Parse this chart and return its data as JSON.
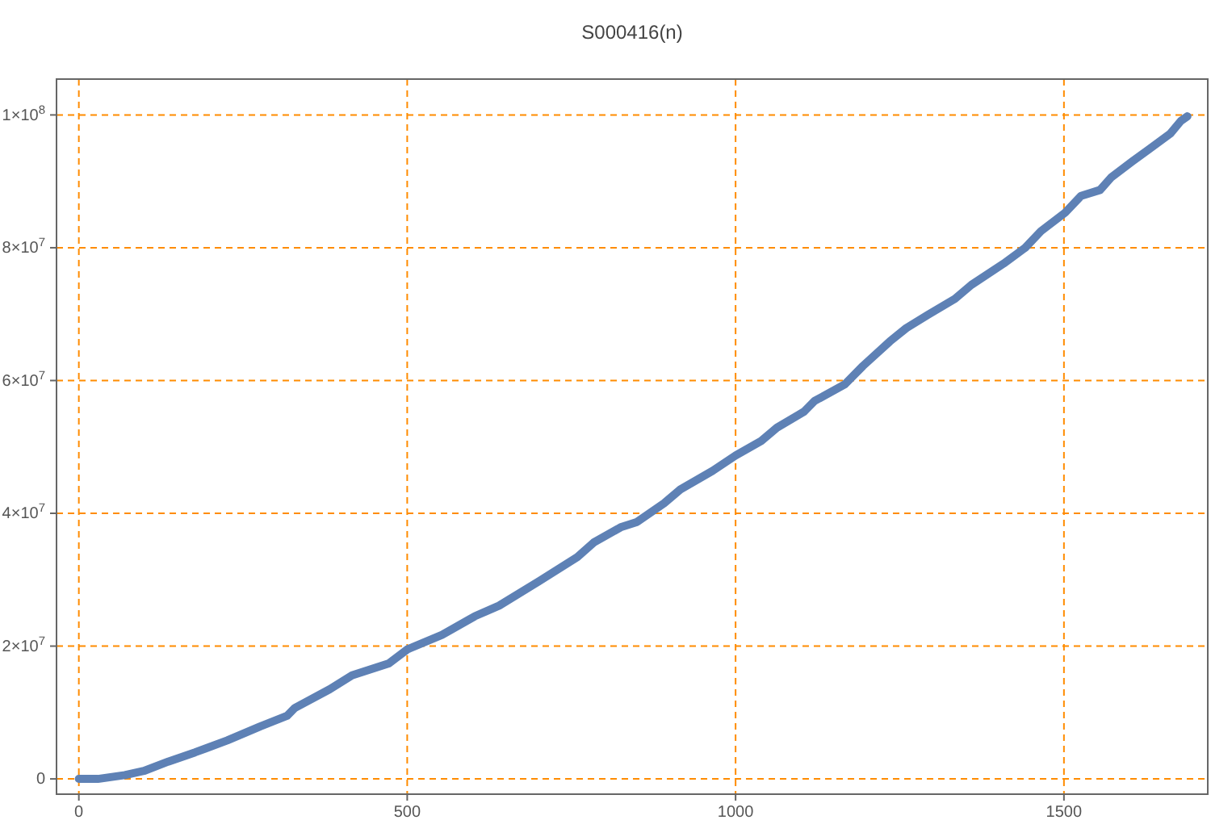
{
  "chart_data": {
    "type": "line",
    "title": "S000416(n)",
    "marker": "none",
    "line_style": "solid",
    "grid": true,
    "x": [
      0,
      29,
      70,
      99,
      136,
      177,
      226,
      276,
      317,
      329,
      382,
      416,
      472,
      500,
      553,
      603,
      640,
      701,
      759,
      784,
      825,
      850,
      891,
      916,
      965,
      1000,
      1039,
      1063,
      1104,
      1120,
      1166,
      1194,
      1235,
      1260,
      1293,
      1334,
      1359,
      1408,
      1441,
      1465,
      1502,
      1526,
      1555,
      1572,
      1604,
      1629,
      1662,
      1678,
      1688
    ],
    "series": [
      {
        "color": "#5e81b5",
        "values": [
          0,
          0,
          570000,
          1200000,
          2600000,
          4000000,
          5800000,
          7900000,
          9500000,
          10700000,
          13500000,
          15600000,
          17400000,
          19500000,
          21700000,
          24500000,
          26100000,
          29800000,
          33400000,
          35600000,
          37900000,
          38700000,
          41500000,
          43600000,
          46400000,
          48700000,
          50900000,
          52900000,
          55300000,
          56900000,
          59400000,
          62200000,
          65900000,
          67900000,
          69900000,
          72300000,
          74400000,
          77600000,
          80000000,
          82500000,
          85300000,
          87800000,
          88700000,
          90600000,
          93000000,
          94800000,
          97200000,
          99100000,
          99800000
        ]
      }
    ],
    "xlim": [
      -34,
      1719
    ],
    "xticks": [
      0,
      500,
      1000,
      1500
    ],
    "ylim": [
      -2300000,
      105400000
    ],
    "yticks": [
      0,
      {
        "value": 20000000,
        "label": "2×10$^{7}$"
      },
      {
        "value": 40000000,
        "label": "4×10$^{7}$"
      },
      {
        "value": 60000000,
        "label": "6×10$^{7}$"
      },
      {
        "value": 80000000,
        "label": "8×10$^{7}$"
      },
      {
        "value": 100000000,
        "label": "1×10$^{8}$"
      }
    ]
  }
}
